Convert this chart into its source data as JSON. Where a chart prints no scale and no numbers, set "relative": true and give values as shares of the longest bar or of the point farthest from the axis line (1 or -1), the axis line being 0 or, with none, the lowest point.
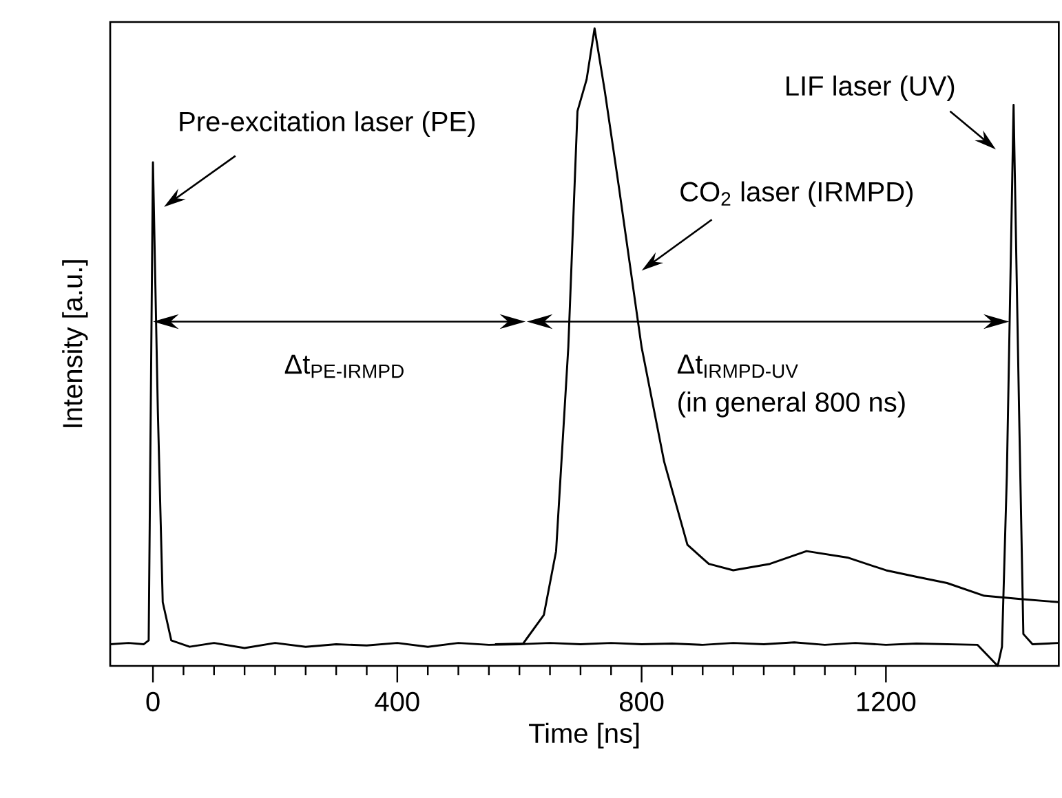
{
  "chart_data": {
    "type": "line",
    "relative": true,
    "xlabel": "Time [ns]",
    "ylabel": "Intensity [a.u.]",
    "xlim": [
      -70,
      1483
    ],
    "xticks": [
      0,
      400,
      800,
      1200
    ],
    "tick_labels": "x",
    "marker": "none",
    "grid": false,
    "series": [
      {
        "color": "#000000",
        "x": [
          -70,
          -40,
          -15,
          -7,
          0,
          8,
          16,
          30,
          60,
          100,
          150,
          200,
          250,
          300,
          350,
          400,
          450,
          500,
          550,
          600,
          650,
          700,
          750,
          800,
          850,
          900,
          950,
          1000,
          1050,
          1100,
          1150,
          1200,
          1250,
          1300,
          1350,
          1383,
          1390,
          1398,
          1409,
          1418,
          1425,
          1440,
          1483
        ],
        "values": [
          0.034,
          0.036,
          0.034,
          0.04,
          0.79,
          0.4,
          0.1,
          0.04,
          0.03,
          0.036,
          0.028,
          0.036,
          0.03,
          0.034,
          0.032,
          0.036,
          0.03,
          0.036,
          0.033,
          0.034,
          0.036,
          0.034,
          0.036,
          0.034,
          0.035,
          0.033,
          0.036,
          0.034,
          0.037,
          0.033,
          0.036,
          0.033,
          0.035,
          0.034,
          0.033,
          0.0,
          0.03,
          0.3,
          0.88,
          0.4,
          0.05,
          0.034,
          0.036
        ]
      },
      {
        "color": "#000000",
        "x": [
          560,
          606,
          640,
          660,
          680,
          695,
          710,
          723,
          740,
          763,
          800,
          837,
          875,
          910,
          950,
          1010,
          1070,
          1137,
          1200,
          1249,
          1300,
          1361,
          1420,
          1483
        ],
        "values": [
          0.034,
          0.035,
          0.08,
          0.18,
          0.5,
          0.87,
          0.92,
          1.0,
          0.9,
          0.75,
          0.5,
          0.32,
          0.19,
          0.16,
          0.15,
          0.16,
          0.18,
          0.17,
          0.15,
          0.14,
          0.13,
          0.11,
          0.105,
          0.1
        ]
      }
    ],
    "annotations": [
      "Pre-excitation laser (PE)",
      "CO$_{2}$ laser (IRMPD)",
      "LIF laser (UV)",
      "Δt$_{PE-IRMPD}$",
      "Δt$_{IRMPD-UV}$",
      "(in general 800 ns)"
    ]
  }
}
